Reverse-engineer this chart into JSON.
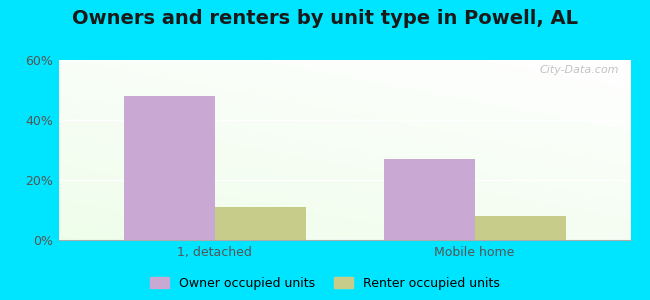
{
  "title": "Owners and renters by unit type in Powell, AL",
  "categories": [
    "1, detached",
    "Mobile home"
  ],
  "owner_values": [
    48,
    27
  ],
  "renter_values": [
    11,
    8
  ],
  "owner_color": "#c9a8d4",
  "renter_color": "#c8cc8a",
  "ylim": [
    0,
    60
  ],
  "yticks": [
    0,
    20,
    40,
    60
  ],
  "yticklabels": [
    "0%",
    "20%",
    "40%",
    "60%"
  ],
  "outer_bg": "#00e5ff",
  "bar_width": 0.35,
  "title_fontsize": 14,
  "legend_fontsize": 9,
  "tick_fontsize": 9,
  "watermark": "City-Data.com"
}
